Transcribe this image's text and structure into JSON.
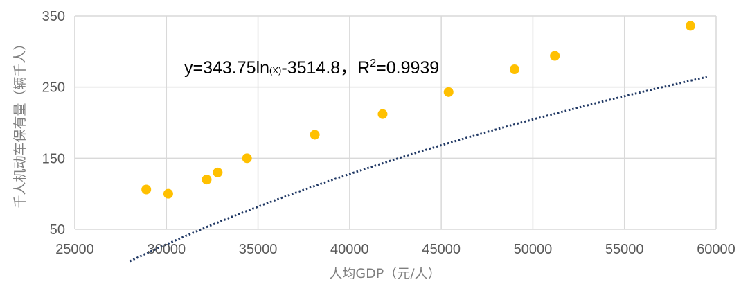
{
  "chart_data": {
    "type": "scatter",
    "xlabel": "人均GDP（元/人）",
    "ylabel": "千人机动车保有量（辆千人）",
    "xlim": [
      25000,
      60000
    ],
    "ylim": [
      50,
      350
    ],
    "x_ticks": [
      "25000",
      "30000",
      "35000",
      "40000",
      "45000",
      "50000",
      "55000",
      "60000"
    ],
    "y_ticks": [
      "50",
      "150",
      "250",
      "350"
    ],
    "grid": true,
    "colors": {
      "points": "#ffc000",
      "trendline": "#203864",
      "grid": "#d9d9d9"
    },
    "series": [
      {
        "x": [
          28900,
          30100,
          32200,
          32800,
          34400,
          38100,
          41800,
          45400,
          49000,
          51200,
          58600
        ],
        "y": [
          106,
          100,
          120,
          130,
          150,
          183,
          212,
          243,
          275,
          294,
          336
        ]
      }
    ],
    "trendline": {
      "type": "log",
      "a": 343.75,
      "b": -3514.8,
      "x_range": [
        28000,
        59500
      ],
      "equation": {
        "prefix": "y=343.75ln",
        "arg": "(X)",
        "mid": "-3514.8，R",
        "sup": "2",
        "suffix": "=0.9939"
      }
    }
  }
}
